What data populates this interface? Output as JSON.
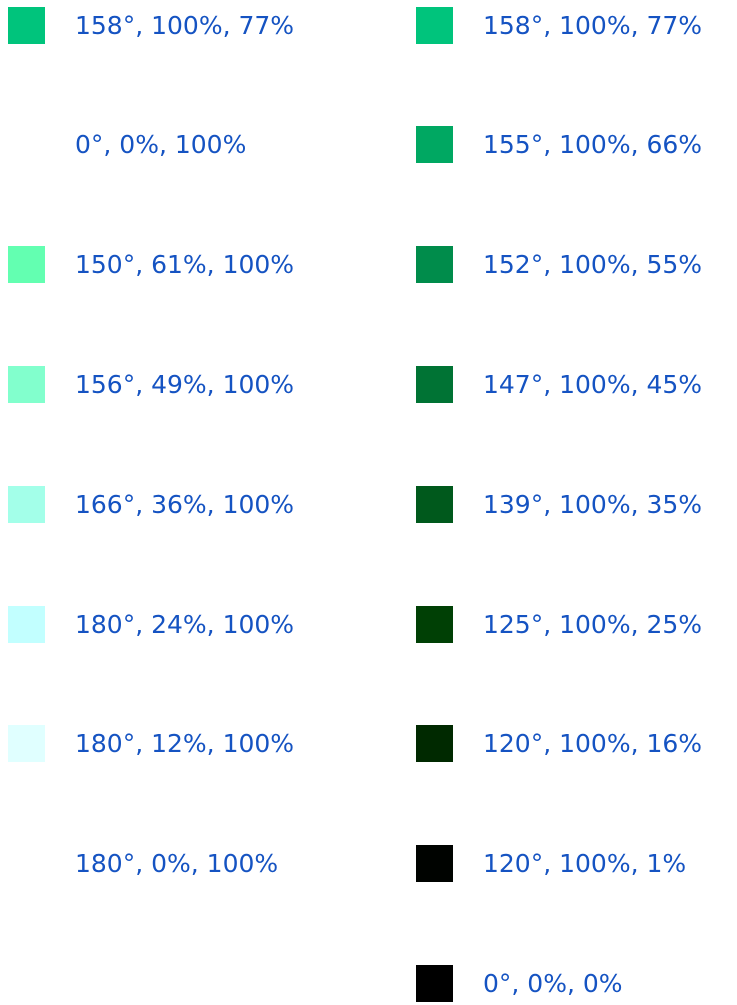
{
  "columns": [
    {
      "items": [
        {
          "label": "158°, 100%, 77%",
          "color": "#00C47C"
        },
        {
          "label": "0°, 0%, 100%",
          "color": "#FFFFFF"
        },
        {
          "label": "150°, 61%, 100%",
          "color": "#63FFB1"
        },
        {
          "label": "156°, 49%, 100%",
          "color": "#82FFCD"
        },
        {
          "label": "166°, 36%, 100%",
          "color": "#A3FFE9"
        },
        {
          "label": "180°, 24%, 100%",
          "color": "#C2FFFF"
        },
        {
          "label": "180°, 12%, 100%",
          "color": "#E0FFFF"
        },
        {
          "label": "180°, 0%, 100%",
          "color": "#FFFFFF"
        }
      ]
    },
    {
      "items": [
        {
          "label": "158°, 100%, 77%",
          "color": "#00C47C"
        },
        {
          "label": "155°, 100%, 66%",
          "color": "#00A862"
        },
        {
          "label": "152°, 100%, 55%",
          "color": "#008C4B"
        },
        {
          "label": "147°, 100%, 45%",
          "color": "#007334"
        },
        {
          "label": "139°, 100%, 35%",
          "color": "#00591C"
        },
        {
          "label": "125°, 100%, 25%",
          "color": "#004005"
        },
        {
          "label": "120°, 100%, 16%",
          "color": "#002900"
        },
        {
          "label": "120°, 100%, 1%",
          "color": "#000300"
        },
        {
          "label": "0°, 0%, 0%",
          "color": "#000000"
        }
      ]
    }
  ]
}
